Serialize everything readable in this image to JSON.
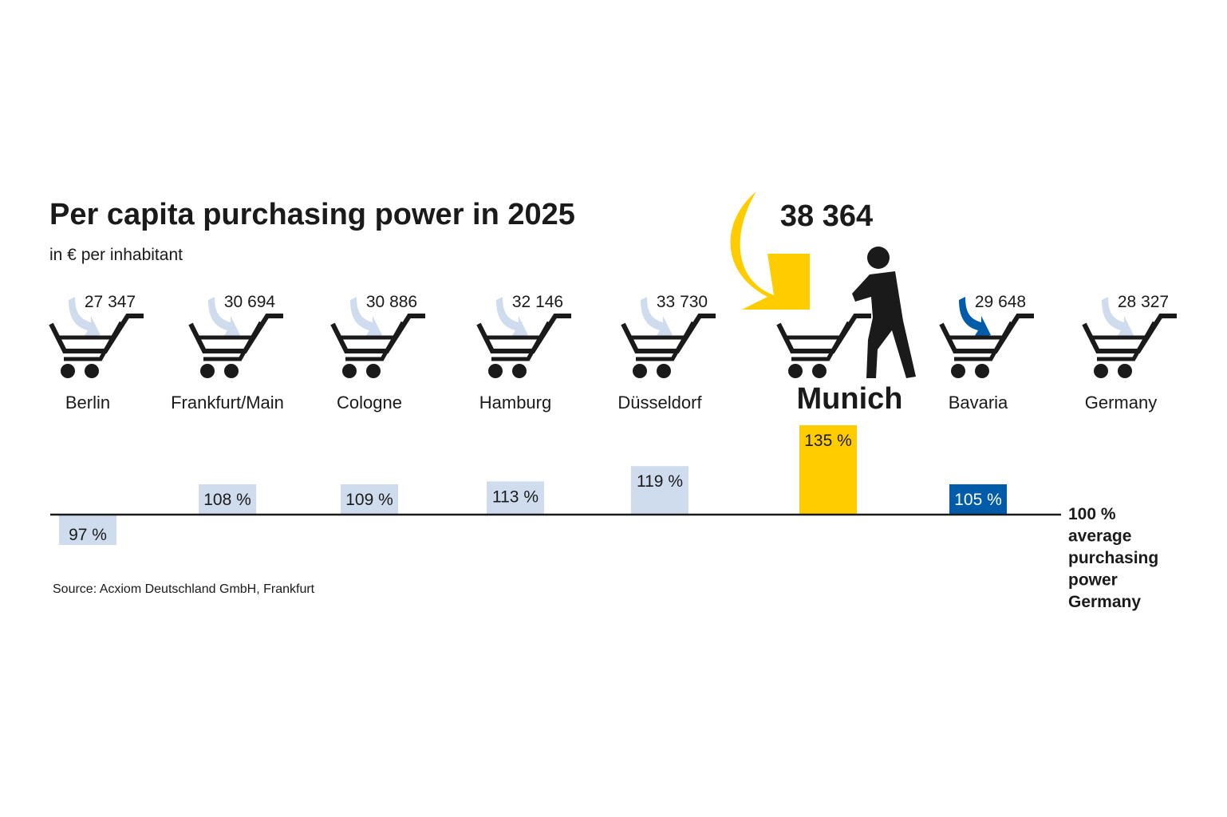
{
  "chart_data": {
    "type": "bar",
    "title": "Per capita purchasing power in 2025",
    "subtitle": "in € per inhabitant",
    "source": "Source: Acxiom Deutschland GmbH, Frankfurt",
    "baseline_label": [
      "100 %",
      "average",
      "purchasing",
      "power",
      "Germany"
    ],
    "baseline_value": 100,
    "unit_suffix": " %",
    "categories": [
      "Berlin",
      "Frankfurt/Main",
      "Cologne",
      "Hamburg",
      "Düsseldorf",
      "Munich",
      "Bavaria",
      "Germany"
    ],
    "values": [
      97,
      108,
      109,
      113,
      119,
      135,
      105,
      null
    ],
    "amounts": [
      "27 347",
      "30 694",
      "30 886",
      "32 146",
      "33 730",
      "38 364",
      "29 648",
      "28 327"
    ],
    "highlight": "Munich",
    "colors": {
      "default_bar": "#cfdcee",
      "highlight_bar": "#ffcc00",
      "bavaria_bar": "#005ca9",
      "arrow_default": "#cfdcee",
      "arrow_bavaria": "#005ca9",
      "cart": "#1a1a1a",
      "baseline": "#1a1a1a"
    },
    "icons": [
      "shopping-cart-icon",
      "down-arrow-icon",
      "walking-person-icon"
    ]
  }
}
